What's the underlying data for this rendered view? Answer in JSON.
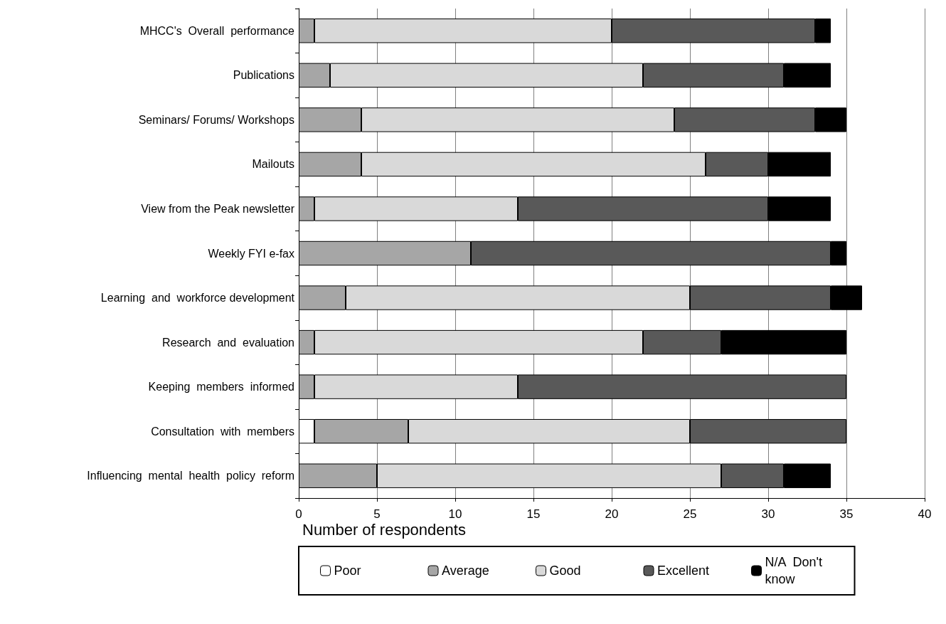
{
  "chart_data": {
    "type": "bar",
    "orientation": "horizontal",
    "stacked": true,
    "xlabel": "Number of respondents",
    "categories": [
      "MHCC's  Overall  performance",
      "Publications",
      "Seminars/ Forums/ Workshops",
      "Mailouts",
      "View from the Peak newsletter",
      "Weekly FYI e-fax",
      "Learning  and  workforce development",
      "Research  and  evaluation",
      "Keeping  members  informed",
      "Consultation  with  members",
      "Influencing  mental  health  policy  reform"
    ],
    "series": [
      {
        "name": "Poor",
        "color": "#ffffff",
        "values": [
          0,
          0,
          0,
          0,
          0,
          0,
          0,
          0,
          0,
          1,
          0
        ]
      },
      {
        "name": "Average",
        "color": "#a6a6a6",
        "values": [
          1,
          2,
          4,
          4,
          1,
          11,
          3,
          1,
          1,
          6,
          5
        ]
      },
      {
        "name": "Good",
        "color": "#d9d9d9",
        "values": [
          19,
          20,
          20,
          22,
          13,
          0,
          22,
          21,
          13,
          18,
          22
        ]
      },
      {
        "name": "Excellent",
        "color": "#595959",
        "values": [
          13,
          9,
          9,
          4,
          16,
          23,
          9,
          5,
          21,
          10,
          4
        ]
      },
      {
        "name": "N/A  Don't  know",
        "color": "#000000",
        "values": [
          1,
          3,
          2,
          4,
          4,
          1,
          2,
          8,
          0,
          0,
          3
        ]
      }
    ],
    "xlim": [
      0,
      40
    ],
    "xticks": [
      0,
      5,
      10,
      15,
      20,
      25,
      30,
      35,
      40
    ],
    "grid": "x",
    "legend": "bottom"
  }
}
